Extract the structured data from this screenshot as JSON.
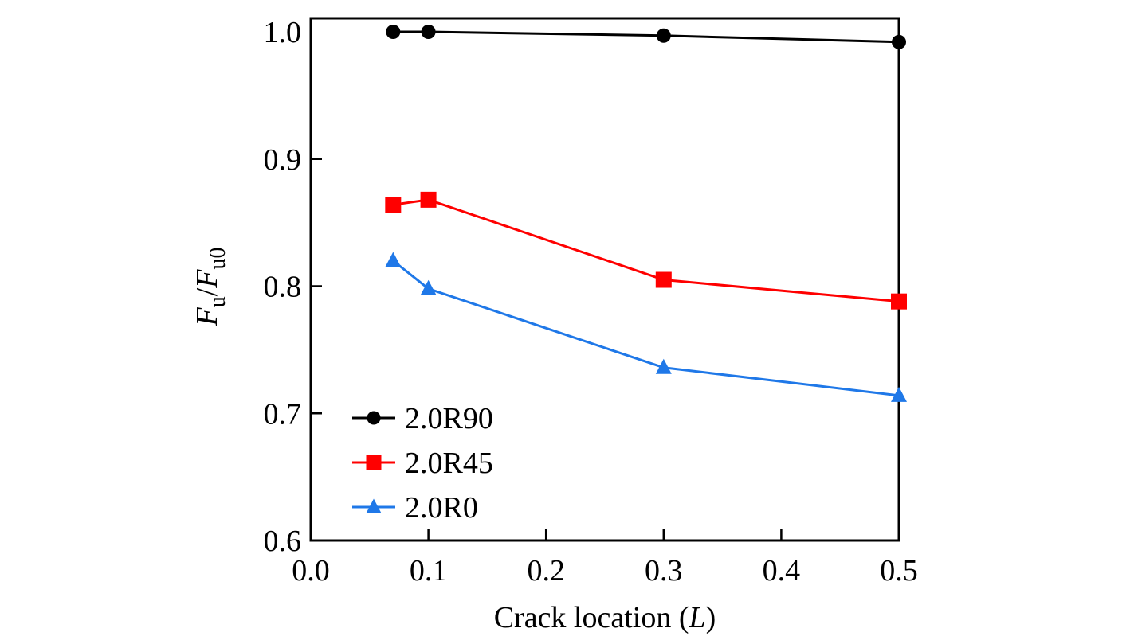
{
  "chart_data": {
    "type": "line",
    "title": "",
    "xlabel": "Crack location (L)",
    "xlabel_parts": {
      "prefix": "Crack location (",
      "italic": "L",
      "suffix": ")"
    },
    "ylabel": "F_u/F_u0",
    "ylabel_parts": {
      "f1": "F",
      "sub1": "u",
      "slash": "/",
      "f2": "F",
      "sub2": "u0"
    },
    "xlim": [
      0.0,
      0.5
    ],
    "ylim": [
      0.6,
      1.0
    ],
    "xticks": [
      "0.0",
      "0.1",
      "0.2",
      "0.3",
      "0.4",
      "0.5"
    ],
    "yticks": [
      "0.6",
      "0.7",
      "0.8",
      "0.9",
      "1.0"
    ],
    "grid": false,
    "legend_position": "lower-left",
    "x": [
      0.07,
      0.1,
      0.3,
      0.5
    ],
    "series": [
      {
        "name": "2.0R90",
        "color": "#000000",
        "marker": "circle",
        "values": [
          1.0,
          1.0,
          0.997,
          0.992
        ]
      },
      {
        "name": "2.0R45",
        "color": "#ff0000",
        "marker": "square",
        "values": [
          0.864,
          0.868,
          0.805,
          0.788
        ]
      },
      {
        "name": "2.0R0",
        "color": "#1f78e8",
        "marker": "triangle",
        "values": [
          0.82,
          0.798,
          0.736,
          0.714
        ]
      }
    ]
  }
}
